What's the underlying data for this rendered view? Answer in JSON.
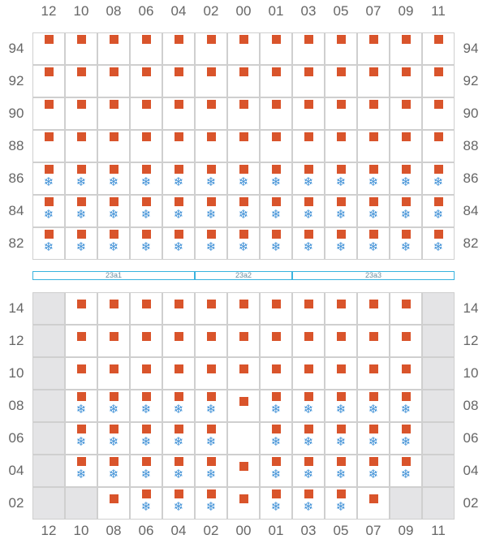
{
  "columns": [
    "12",
    "10",
    "08",
    "06",
    "04",
    "02",
    "00",
    "01",
    "03",
    "05",
    "07",
    "09",
    "11"
  ],
  "icons": {
    "container": "container-square-icon",
    "reefer": "snowflake-icon"
  },
  "colors": {
    "container": "#d9542b",
    "reefer": "#3d8fd6",
    "hatch": "#39b3de",
    "blocked": "#e4e4e6",
    "grid": "#cfcfcf"
  },
  "reefer_glyph": "❄",
  "hatch_covers": [
    {
      "label": "23a1",
      "from_col": 0,
      "to_col": 4
    },
    {
      "label": "23a2",
      "from_col": 5,
      "to_col": 7
    },
    {
      "label": "23a3",
      "from_col": 8,
      "to_col": 12
    }
  ],
  "deck": {
    "tiers": [
      {
        "tier": "94",
        "cells": [
          "C",
          "C",
          "C",
          "C",
          "C",
          "C",
          "C",
          "C",
          "C",
          "C",
          "C",
          "C",
          "C"
        ]
      },
      {
        "tier": "92",
        "cells": [
          "C",
          "C",
          "C",
          "C",
          "C",
          "C",
          "C",
          "C",
          "C",
          "C",
          "C",
          "C",
          "C"
        ]
      },
      {
        "tier": "90",
        "cells": [
          "C",
          "C",
          "C",
          "C",
          "C",
          "C",
          "C",
          "C",
          "C",
          "C",
          "C",
          "C",
          "C"
        ]
      },
      {
        "tier": "88",
        "cells": [
          "C",
          "C",
          "C",
          "C",
          "C",
          "C",
          "C",
          "C",
          "C",
          "C",
          "C",
          "C",
          "C"
        ]
      },
      {
        "tier": "86",
        "cells": [
          "R",
          "R",
          "R",
          "R",
          "R",
          "R",
          "R",
          "R",
          "R",
          "R",
          "R",
          "R",
          "R"
        ]
      },
      {
        "tier": "84",
        "cells": [
          "R",
          "R",
          "R",
          "R",
          "R",
          "R",
          "R",
          "R",
          "R",
          "R",
          "R",
          "R",
          "R"
        ]
      },
      {
        "tier": "82",
        "cells": [
          "R",
          "R",
          "R",
          "R",
          "R",
          "R",
          "R",
          "R",
          "R",
          "R",
          "R",
          "R",
          "R"
        ]
      }
    ]
  },
  "hold": {
    "tiers": [
      {
        "tier": "14",
        "cells": [
          "X",
          "C",
          "C",
          "C",
          "C",
          "C",
          "C",
          "C",
          "C",
          "C",
          "C",
          "C",
          "X"
        ]
      },
      {
        "tier": "12",
        "cells": [
          "X",
          "C",
          "C",
          "C",
          "C",
          "C",
          "C",
          "C",
          "C",
          "C",
          "C",
          "C",
          "X"
        ]
      },
      {
        "tier": "10",
        "cells": [
          "X",
          "C",
          "C",
          "C",
          "C",
          "C",
          "C",
          "C",
          "C",
          "C",
          "C",
          "C",
          "X"
        ]
      },
      {
        "tier": "08",
        "cells": [
          "X",
          "R",
          "R",
          "R",
          "R",
          "R",
          "C",
          "R",
          "R",
          "R",
          "R",
          "R",
          "X"
        ]
      },
      {
        "tier": "06",
        "cells": [
          "X",
          "R",
          "R",
          "R",
          "R",
          "R",
          "E",
          "R",
          "R",
          "R",
          "R",
          "R",
          "X"
        ]
      },
      {
        "tier": "04",
        "cells": [
          "X",
          "R",
          "R",
          "R",
          "R",
          "R",
          "C",
          "R",
          "R",
          "R",
          "R",
          "R",
          "X"
        ]
      },
      {
        "tier": "02",
        "cells": [
          "X",
          "X",
          "C",
          "R",
          "R",
          "R",
          "C",
          "R",
          "R",
          "R",
          "C",
          "X",
          "X"
        ]
      }
    ]
  }
}
